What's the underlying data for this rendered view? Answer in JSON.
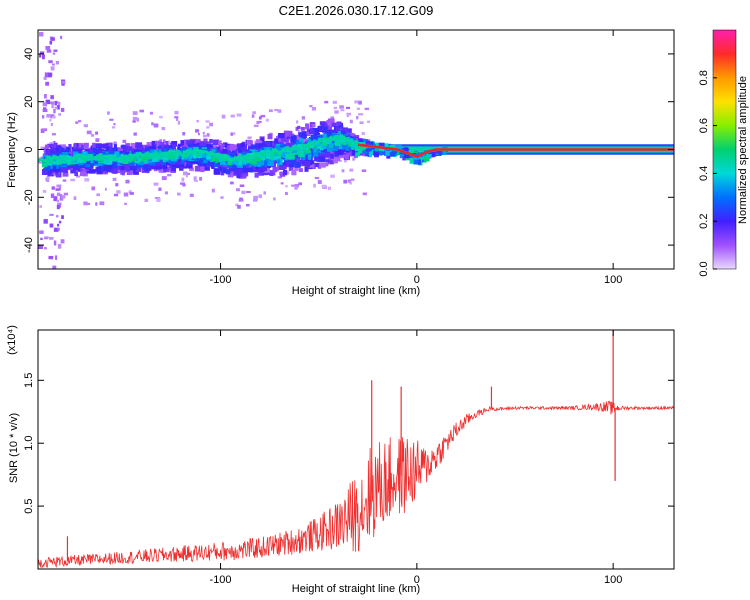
{
  "title": "C2E1.2026.030.17.12.G09",
  "colors": {
    "snr_line": "#ee3030",
    "trace": "#e8242a",
    "axis": "#000000"
  },
  "colorbar_stops": [
    "#ff1fb0",
    "#ff2a2a",
    "#ff9a00",
    "#ffe000",
    "#88ee00",
    "#00d070",
    "#00d8d8",
    "#0070ff",
    "#4020ff",
    "#a050ff",
    "#e8d8ff"
  ],
  "chart_data": [
    {
      "type": "heatmap",
      "name": "spectrogram",
      "title": "C2E1.2026.030.17.12.G09",
      "xlabel": "Height of straight line (km)",
      "ylabel": "Frequency (Hz)",
      "xlim": [
        -193,
        131
      ],
      "ylim": [
        -50,
        50
      ],
      "xticks": [
        -100,
        0,
        100
      ],
      "yticks": [
        -40,
        -20,
        0,
        20,
        40
      ],
      "colorbar": {
        "label": "Normalized spectral amplitude",
        "range": [
          0,
          1
        ],
        "ticks": [
          0.0,
          0.2,
          0.4,
          0.6,
          0.8
        ]
      },
      "ridge": {
        "x": [
          -190,
          -170,
          -150,
          -130,
          -110,
          -95,
          -80,
          -65,
          -50,
          -40,
          -30,
          -20,
          -10,
          -3,
          0,
          5,
          10,
          20,
          131
        ],
        "y": [
          -4,
          -3,
          -3,
          -2,
          -1,
          -4,
          -2,
          0,
          3,
          5,
          2,
          1,
          0,
          -2,
          -3,
          -1,
          0,
          0,
          0
        ],
        "spread": [
          7,
          6,
          6,
          6,
          6,
          7,
          8,
          9,
          10,
          8,
          3,
          2,
          2,
          2,
          2,
          1,
          1,
          1,
          1
        ]
      }
    },
    {
      "type": "line",
      "name": "snr",
      "xlabel": "Height of straight line (km)",
      "ylabel": "SNR (10 * v/v)",
      "scale_label": "(x10⁴)",
      "xlim": [
        -193,
        131
      ],
      "ylim": [
        0,
        19000
      ],
      "xticks": [
        -100,
        0,
        100
      ],
      "yticks": [
        5000,
        10000,
        15000
      ],
      "ytick_labels": [
        "0.5",
        "1.0",
        "1.5"
      ],
      "series": [
        {
          "name": "SNR",
          "x": [
            -193,
            -170,
            -150,
            -130,
            -110,
            -90,
            -75,
            -60,
            -50,
            -40,
            -33,
            -28,
            -25,
            -20,
            -15,
            -10,
            -5,
            0,
            5,
            10,
            15,
            20,
            25,
            30,
            35,
            38,
            40,
            50,
            60,
            70,
            80,
            90,
            95,
            98,
            100,
            102,
            105,
            115,
            131
          ],
          "y": [
            500,
            700,
            900,
            1100,
            1300,
            1500,
            1800,
            2300,
            2800,
            3500,
            4200,
            5000,
            5800,
            6500,
            7000,
            7300,
            7600,
            7800,
            8200,
            9000,
            10000,
            11000,
            11800,
            12300,
            12600,
            12800,
            12700,
            12800,
            12800,
            12800,
            12800,
            12900,
            12900,
            12800,
            12800,
            12800,
            12800,
            12800,
            12800
          ],
          "noise": [
            400,
            450,
            500,
            600,
            700,
            800,
            900,
            1100,
            1400,
            2000,
            3000,
            3500,
            4000,
            3800,
            3500,
            3300,
            3200,
            2500,
            1500,
            1200,
            900,
            700,
            500,
            300,
            200,
            150,
            120,
            120,
            120,
            120,
            150,
            250,
            400,
            600,
            500,
            300,
            150,
            120,
            120
          ]
        }
      ],
      "spikes": [
        {
          "x": -178,
          "y": 2600
        },
        {
          "x": -23,
          "y": 15000
        },
        {
          "x": -8,
          "y": 14500
        },
        {
          "x": 38,
          "y": 14500
        },
        {
          "x": 100,
          "y": 19000
        },
        {
          "x": 101,
          "y": 7000
        }
      ]
    }
  ]
}
